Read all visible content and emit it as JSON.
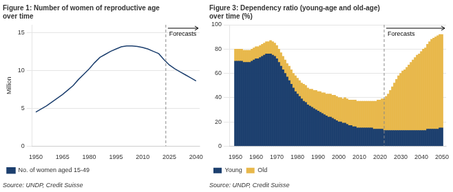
{
  "chart_data": [
    {
      "type": "line",
      "title": "Figure 1: Number of women of reproductive age\nover time",
      "ylabel": "Million",
      "source": "Source: UNDP, Credit Suisse",
      "x": [
        1950,
        1953,
        1956,
        1959,
        1962,
        1965,
        1968,
        1971,
        1974,
        1977,
        1980,
        1983,
        1986,
        1989,
        1992,
        1995,
        1998,
        2001,
        2004,
        2007,
        2010,
        2013,
        2016,
        2019,
        2022,
        2025,
        2028,
        2031,
        2034,
        2037,
        2040
      ],
      "series": [
        {
          "name": "No. of women aged 15-49",
          "color": "#1c3f6e",
          "values": [
            4.5,
            4.9,
            5.3,
            5.8,
            6.3,
            6.8,
            7.4,
            8.0,
            8.8,
            9.5,
            10.2,
            11.0,
            11.7,
            12.1,
            12.5,
            12.8,
            13.1,
            13.2,
            13.2,
            13.15,
            13.0,
            12.8,
            12.5,
            12.2,
            11.4,
            10.7,
            10.2,
            9.8,
            9.4,
            9.0,
            8.6
          ]
        }
      ],
      "xlim": [
        1948,
        2042
      ],
      "xticks": [
        1950,
        1965,
        1980,
        1995,
        2010,
        2025,
        2040
      ],
      "ylim": [
        0,
        16
      ],
      "yticks": [
        0,
        5,
        10,
        15
      ],
      "grid": "y",
      "legend": "bottom left",
      "annotations": [
        {
          "text": "Forecasts",
          "x": 2023
        }
      ]
    },
    {
      "type": "bar",
      "stacked": true,
      "title": "Figure 3: Dependency ratio (young-age and old-age)\nover time (%)",
      "source": "Source: UNDP, Credit Suisse",
      "x": [
        1950,
        1951,
        1952,
        1953,
        1954,
        1955,
        1956,
        1957,
        1958,
        1959,
        1960,
        1961,
        1962,
        1963,
        1964,
        1965,
        1966,
        1967,
        1968,
        1969,
        1970,
        1971,
        1972,
        1973,
        1974,
        1975,
        1976,
        1977,
        1978,
        1979,
        1980,
        1981,
        1982,
        1983,
        1984,
        1985,
        1986,
        1987,
        1988,
        1989,
        1990,
        1991,
        1992,
        1993,
        1994,
        1995,
        1996,
        1997,
        1998,
        1999,
        2000,
        2001,
        2002,
        2003,
        2004,
        2005,
        2006,
        2007,
        2008,
        2009,
        2010,
        2011,
        2012,
        2013,
        2014,
        2015,
        2016,
        2017,
        2018,
        2019,
        2020,
        2021,
        2022,
        2023,
        2024,
        2025,
        2026,
        2027,
        2028,
        2029,
        2030,
        2031,
        2032,
        2033,
        2034,
        2035,
        2036,
        2037,
        2038,
        2039,
        2040,
        2041,
        2042,
        2043,
        2044,
        2045,
        2046,
        2047,
        2048,
        2049,
        2050
      ],
      "series": [
        {
          "name": "Young",
          "color": "#1c3f6e",
          "values": [
            70,
            70,
            70,
            70,
            69,
            69,
            69,
            69,
            70,
            71,
            72,
            72,
            73,
            74,
            75,
            76,
            76,
            76,
            75,
            74,
            72,
            69,
            66,
            63,
            60,
            57,
            54,
            51,
            48,
            45,
            43,
            41,
            39,
            37,
            36,
            34,
            33,
            32,
            31,
            30,
            29,
            28,
            27,
            26,
            25,
            24,
            24,
            23,
            22,
            21,
            20,
            20,
            19,
            19,
            18,
            17,
            17,
            16,
            16,
            15,
            15,
            15,
            15,
            15,
            15,
            15,
            15,
            14,
            14,
            14,
            14,
            14,
            13,
            13,
            13,
            13,
            13,
            13,
            13,
            13,
            13,
            13,
            13,
            13,
            13,
            13,
            13,
            13,
            13,
            13,
            13,
            13,
            13,
            14,
            14,
            14,
            14,
            14,
            14,
            15,
            15
          ]
        },
        {
          "name": "Old",
          "color": "#e8b84b",
          "values": [
            10,
            10,
            10,
            10,
            10,
            10,
            10,
            10,
            10,
            10,
            10,
            10,
            10,
            10,
            10,
            10,
            10,
            11,
            11,
            11,
            11,
            11,
            11,
            11,
            11,
            11,
            12,
            12,
            12,
            13,
            13,
            13,
            13,
            14,
            14,
            14,
            14,
            15,
            15,
            16,
            16,
            17,
            17,
            18,
            18,
            19,
            19,
            19,
            20,
            20,
            20,
            20,
            20,
            21,
            21,
            21,
            21,
            22,
            22,
            22,
            22,
            22,
            22,
            22,
            22,
            22,
            22,
            23,
            23,
            24,
            24,
            25,
            26,
            28,
            30,
            33,
            36,
            39,
            42,
            45,
            47,
            49,
            50,
            52,
            54,
            56,
            58,
            60,
            62,
            63,
            65,
            67,
            68,
            70,
            72,
            74,
            75,
            76,
            77,
            77,
            77
          ]
        }
      ],
      "xlim": [
        1947,
        2052
      ],
      "xticks": [
        1950,
        1960,
        1970,
        1980,
        1990,
        2000,
        2010,
        2020,
        2030,
        2040,
        2050
      ],
      "ylim": [
        0,
        100
      ],
      "yticks": [
        0,
        20,
        40,
        60,
        80,
        100
      ],
      "grid": "y",
      "legend": "bottom left",
      "annotations": [
        {
          "text": "Forecasts",
          "x": 2022
        }
      ]
    }
  ]
}
